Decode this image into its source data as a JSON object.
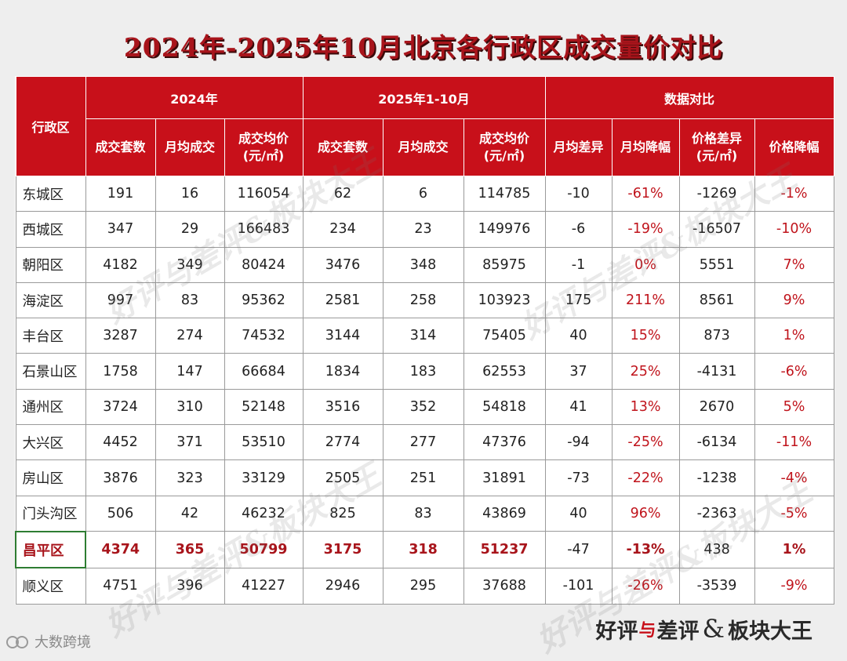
{
  "title": "2024年-2025年10月北京各行政区成交量价对比",
  "header": {
    "district": "行政区",
    "group_2024": "2024年",
    "group_2025": "2025年1-10月",
    "group_compare": "数据对比",
    "cols": {
      "deals": "成交套数",
      "monthly": "月均成交",
      "avg_price_line1": "成交均价",
      "avg_price_line2": "(元/㎡)",
      "monthly_diff": "月均差异",
      "monthly_drop": "月均降幅",
      "price_diff_line1": "价格差异",
      "price_diff_line2": "(元/㎡)",
      "price_drop": "价格降幅"
    }
  },
  "rows": [
    {
      "district": "东城区",
      "d24": "191",
      "m24": "16",
      "p24": "116054",
      "d25": "62",
      "m25": "6",
      "p25": "114785",
      "md": "-10",
      "mp": "-61%",
      "pd": "-1269",
      "pp": "-1%"
    },
    {
      "district": "西城区",
      "d24": "347",
      "m24": "29",
      "p24": "166483",
      "d25": "234",
      "m25": "23",
      "p25": "149976",
      "md": "-6",
      "mp": "-19%",
      "pd": "-16507",
      "pp": "-10%"
    },
    {
      "district": "朝阳区",
      "d24": "4182",
      "m24": "349",
      "p24": "80424",
      "d25": "3476",
      "m25": "348",
      "p25": "85975",
      "md": "-1",
      "mp": "0%",
      "pd": "5551",
      "pp": "7%"
    },
    {
      "district": "海淀区",
      "d24": "997",
      "m24": "83",
      "p24": "95362",
      "d25": "2581",
      "m25": "258",
      "p25": "103923",
      "md": "175",
      "mp": "211%",
      "pd": "8561",
      "pp": "9%"
    },
    {
      "district": "丰台区",
      "d24": "3287",
      "m24": "274",
      "p24": "74532",
      "d25": "3144",
      "m25": "314",
      "p25": "75405",
      "md": "40",
      "mp": "15%",
      "pd": "873",
      "pp": "1%"
    },
    {
      "district": "石景山区",
      "d24": "1758",
      "m24": "147",
      "p24": "66684",
      "d25": "1834",
      "m25": "183",
      "p25": "62553",
      "md": "37",
      "mp": "25%",
      "pd": "-4131",
      "pp": "-6%"
    },
    {
      "district": "通州区",
      "d24": "3724",
      "m24": "310",
      "p24": "52148",
      "d25": "3516",
      "m25": "352",
      "p25": "54818",
      "md": "41",
      "mp": "13%",
      "pd": "2670",
      "pp": "5%"
    },
    {
      "district": "大兴区",
      "d24": "4452",
      "m24": "371",
      "p24": "53510",
      "d25": "2774",
      "m25": "277",
      "p25": "47376",
      "md": "-94",
      "mp": "-25%",
      "pd": "-6134",
      "pp": "-11%"
    },
    {
      "district": "房山区",
      "d24": "3876",
      "m24": "323",
      "p24": "33129",
      "d25": "2505",
      "m25": "251",
      "p25": "31891",
      "md": "-73",
      "mp": "-22%",
      "pd": "-1238",
      "pp": "-4%"
    },
    {
      "district": "门头沟区",
      "d24": "506",
      "m24": "42",
      "p24": "46232",
      "d25": "825",
      "m25": "83",
      "p25": "43869",
      "md": "40",
      "mp": "96%",
      "pd": "-2363",
      "pp": "-5%"
    },
    {
      "district": "昌平区",
      "d24": "4374",
      "m24": "365",
      "p24": "50799",
      "d25": "3175",
      "m25": "318",
      "p25": "51237",
      "md": "-47",
      "mp": "-13%",
      "pd": "438",
      "pp": "1%"
    },
    {
      "district": "顺义区",
      "d24": "4751",
      "m24": "396",
      "p24": "41227",
      "d25": "2946",
      "m25": "295",
      "p25": "37688",
      "md": "-101",
      "mp": "-26%",
      "pd": "-3539",
      "pp": "-9%"
    }
  ],
  "source_label": "大数跨境",
  "brand": {
    "part1": "好",
    "part2": "评",
    "accent": "与",
    "part3": "差",
    "part4": "评",
    "amp": "&",
    "part5": "板块大王"
  },
  "watermark_text": "好评与差评&板块大王",
  "colors": {
    "header_red": "#c8101a",
    "value_red": "#c0141c",
    "highlight_border": "#2e7d32"
  }
}
